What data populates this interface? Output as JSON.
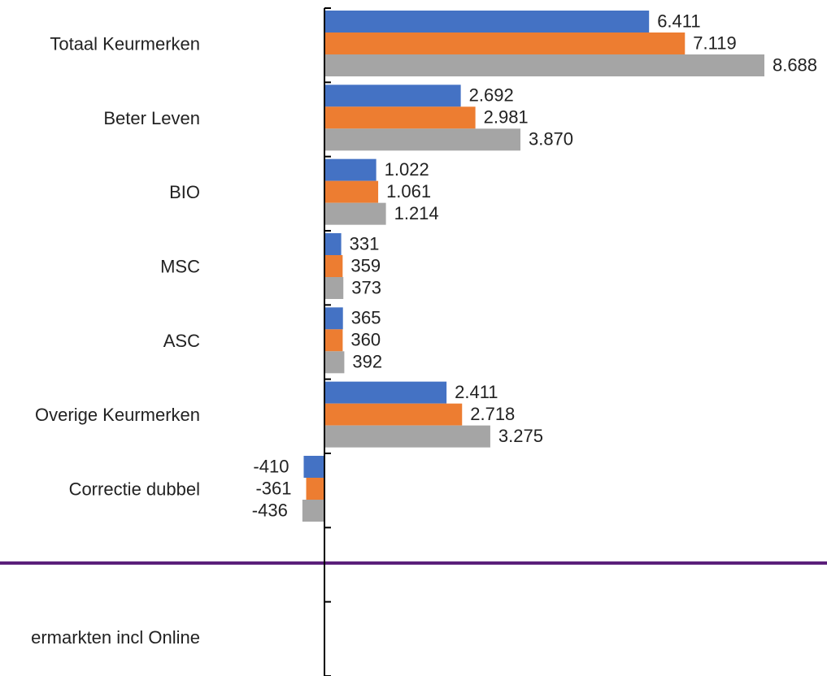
{
  "chart_data": {
    "type": "bar",
    "orientation": "horizontal",
    "categories": [
      "Totaal Keurmerken",
      "Beter Leven",
      "BIO",
      "MSC",
      "ASC",
      "Overige Keurmerken",
      "Correctie dubbel",
      null,
      "ermarkten incl Online"
    ],
    "series": [
      {
        "color": "#4472c4",
        "values": [
          6411,
          2692,
          1022,
          331,
          365,
          2411,
          -410,
          null,
          null
        ],
        "value_labels": [
          "6.411",
          "2.692",
          "1.022",
          "331",
          "365",
          "2.411",
          "-410",
          null,
          null
        ]
      },
      {
        "color": "#ed7d31",
        "values": [
          7119,
          2981,
          1061,
          359,
          360,
          2718,
          -361,
          null,
          null
        ],
        "value_labels": [
          "7.119",
          "2.981",
          "1.061",
          "359",
          "360",
          "2.718",
          "-361",
          null,
          null
        ]
      },
      {
        "color": "#a5a5a5",
        "values": [
          8688,
          3870,
          1214,
          373,
          392,
          3275,
          -436,
          null,
          null
        ],
        "value_labels": [
          "8.688",
          "3.870",
          "1.214",
          "373",
          "392",
          "3.275",
          "-436",
          null,
          null
        ]
      }
    ],
    "xlim": [
      -6408,
      9925
    ]
  }
}
